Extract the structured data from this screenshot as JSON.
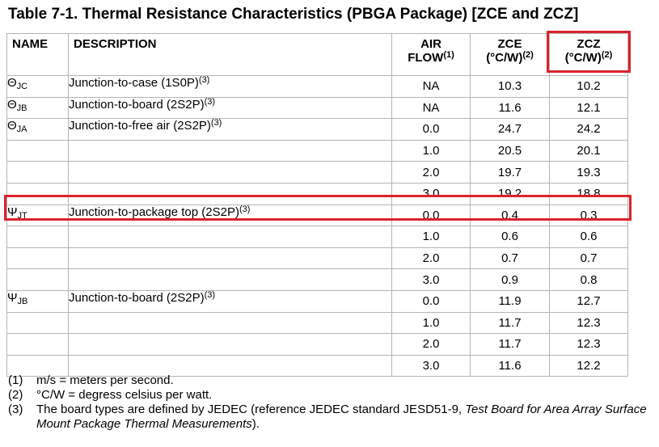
{
  "title": "Table 7-1. Thermal Resistance Characteristics (PBGA Package) [ZCE and ZCZ]",
  "headers": {
    "name": "NAME",
    "description": "DESCRIPTION",
    "airflow_line1": "AIR",
    "airflow_line2": "FLOW",
    "airflow_note": "(1)",
    "zce": "ZCE",
    "zce_unit": "(°C/W)",
    "zce_note": "(2)",
    "zcz": "ZCZ",
    "zcz_unit": "(°C/W)",
    "zcz_note": "(2)"
  },
  "groups": [
    {
      "symbol": "Θ",
      "sub": "JC",
      "description": "Junction-to-case (1S0P)",
      "note": "(3)",
      "rows": [
        {
          "airflow": "NA",
          "zce": "10.3",
          "zcz": "10.2"
        }
      ]
    },
    {
      "symbol": "Θ",
      "sub": "JB",
      "description": "Junction-to-board (2S2P)",
      "note": "(3)",
      "rows": [
        {
          "airflow": "NA",
          "zce": "11.6",
          "zcz": "12.1"
        }
      ]
    },
    {
      "symbol": "Θ",
      "sub": "JA",
      "description": "Junction-to-free air (2S2P)",
      "note": "(3)",
      "rows": [
        {
          "airflow": "0.0",
          "zce": "24.7",
          "zcz": "24.2"
        },
        {
          "airflow": "1.0",
          "zce": "20.5",
          "zcz": "20.1"
        },
        {
          "airflow": "2.0",
          "zce": "19.7",
          "zcz": "19.3"
        },
        {
          "airflow": "3.0",
          "zce": "19.2",
          "zcz": "18.8"
        }
      ]
    },
    {
      "symbol": "Ψ",
      "sub": "JT",
      "description": "Junction-to-package top (2S2P)",
      "note": "(3)",
      "rows": [
        {
          "airflow": "0.0",
          "zce": "0.4",
          "zcz": "0.3"
        },
        {
          "airflow": "1.0",
          "zce": "0.6",
          "zcz": "0.6"
        },
        {
          "airflow": "2.0",
          "zce": "0.7",
          "zcz": "0.7"
        },
        {
          "airflow": "3.0",
          "zce": "0.9",
          "zcz": "0.8"
        }
      ]
    },
    {
      "symbol": "Ψ",
      "sub": "JB",
      "description": "Junction-to-board (2S2P)",
      "note": "(3)",
      "rows": [
        {
          "airflow": "0.0",
          "zce": "11.9",
          "zcz": "12.7"
        },
        {
          "airflow": "1.0",
          "zce": "11.7",
          "zcz": "12.3"
        },
        {
          "airflow": "2.0",
          "zce": "11.7",
          "zcz": "12.3"
        },
        {
          "airflow": "3.0",
          "zce": "11.6",
          "zcz": "12.2"
        }
      ]
    }
  ],
  "notes": [
    {
      "num": "(1)",
      "text": "m/s = meters per second."
    },
    {
      "num": "(2)",
      "text": "°C/W = degress celsius per watt."
    },
    {
      "num": "(3)",
      "text": "The board types are defined by JEDEC (reference JEDEC standard JESD51-9, ",
      "italic": "Test Board for Area Array Surface Mount Package Thermal Measurements",
      "tail": ")."
    }
  ],
  "highlight_color": "#d9232e"
}
